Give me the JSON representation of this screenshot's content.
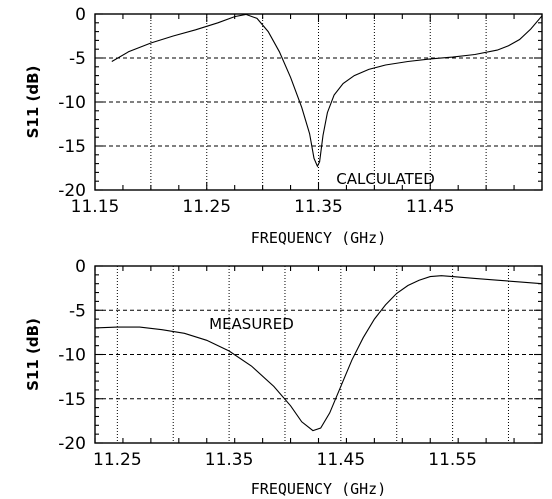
{
  "chart_data": [
    {
      "type": "line",
      "title": "",
      "xlabel": "FREQUENCY (GHz)",
      "ylabel": "S11 (dB)",
      "annotation": "CALCULATED",
      "xlim": [
        11.15,
        11.55
      ],
      "ylim": [
        -20,
        0
      ],
      "xticks": [
        11.15,
        11.25,
        11.35,
        11.45
      ],
      "xtick_labels": [
        "11.15",
        "11.25",
        "11.35",
        "11.45"
      ],
      "yticks": [
        0,
        -5,
        -10,
        -15,
        -20
      ],
      "ytick_labels": [
        "0",
        "-5",
        "-10",
        "-15",
        "-20"
      ],
      "grid": true,
      "series": [
        {
          "x": [
            11.165,
            11.18,
            11.2,
            11.22,
            11.24,
            11.26,
            11.275,
            11.285,
            11.295,
            11.305,
            11.315,
            11.325,
            11.335,
            11.342,
            11.346,
            11.349,
            11.351,
            11.354,
            11.358,
            11.364,
            11.372,
            11.382,
            11.395,
            11.41,
            11.43,
            11.45,
            11.47,
            11.49,
            11.51,
            11.52,
            11.53,
            11.54,
            11.55
          ],
          "y": [
            -5.4,
            -4.3,
            -3.3,
            -2.5,
            -1.8,
            -1.0,
            -0.3,
            -0.05,
            -0.5,
            -2.0,
            -4.3,
            -7.2,
            -10.6,
            -13.6,
            -16.4,
            -17.3,
            -16.8,
            -13.8,
            -11.2,
            -9.2,
            -7.9,
            -7.0,
            -6.3,
            -5.8,
            -5.4,
            -5.1,
            -4.9,
            -4.6,
            -4.1,
            -3.6,
            -2.9,
            -1.7,
            -0.2
          ]
        }
      ]
    },
    {
      "type": "line",
      "title": "",
      "xlabel": "FREQUENCY (GHz)",
      "ylabel": "S11 (dB)",
      "annotation": "MEASURED",
      "xlim": [
        11.23,
        11.63
      ],
      "ylim": [
        -20,
        0
      ],
      "xticks": [
        11.25,
        11.35,
        11.45,
        11.55
      ],
      "xtick_labels": [
        "11.25",
        "11.35",
        "11.45",
        "11.55"
      ],
      "yticks": [
        0,
        -5,
        -10,
        -15,
        -20
      ],
      "ytick_labels": [
        "0",
        "-5",
        "-10",
        "-15",
        "-20"
      ],
      "grid": true,
      "series": [
        {
          "x": [
            11.23,
            11.25,
            11.27,
            11.29,
            11.31,
            11.33,
            11.35,
            11.37,
            11.39,
            11.405,
            11.415,
            11.425,
            11.432,
            11.44,
            11.45,
            11.46,
            11.47,
            11.48,
            11.49,
            11.5,
            11.51,
            11.52,
            11.53,
            11.54,
            11.55,
            11.57,
            11.59,
            11.61,
            11.63
          ],
          "y": [
            -7.0,
            -6.9,
            -6.9,
            -7.2,
            -7.6,
            -8.4,
            -9.6,
            -11.3,
            -13.6,
            -15.8,
            -17.6,
            -18.6,
            -18.3,
            -16.6,
            -13.6,
            -10.6,
            -8.1,
            -6.0,
            -4.4,
            -3.1,
            -2.2,
            -1.6,
            -1.2,
            -1.1,
            -1.2,
            -1.4,
            -1.6,
            -1.8,
            -2.0
          ]
        }
      ]
    }
  ]
}
